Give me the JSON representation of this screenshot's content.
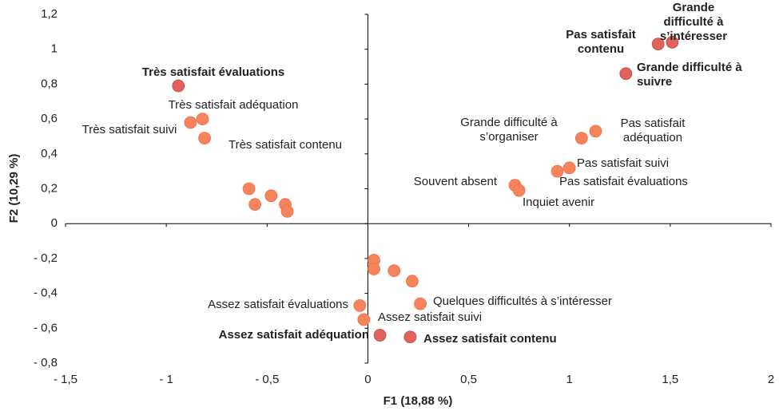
{
  "chart_data": {
    "type": "scatter",
    "x_label": "F1 (18,88 %)",
    "y_label": "F2 (10,29 %)",
    "xlim": [
      -1.5,
      2
    ],
    "ylim": [
      -0.8,
      1.2
    ],
    "xticks": [
      {
        "value": -1.5,
        "label": "- 1,5"
      },
      {
        "value": -1,
        "label": "- 1"
      },
      {
        "value": -0.5,
        "label": "- 0,5"
      },
      0,
      {
        "value": 0.5,
        "label": "0,5"
      },
      1,
      {
        "value": 1.5,
        "label": "1,5"
      },
      2
    ],
    "yticks": [
      {
        "value": -0.8,
        "label": "- 0,8"
      },
      {
        "value": -0.6,
        "label": "- 0,6"
      },
      {
        "value": -0.4,
        "label": "- 0,4"
      },
      {
        "value": -0.2,
        "label": "- 0,2"
      },
      0,
      {
        "value": 0.2,
        "label": "0,2"
      },
      {
        "value": 0.4,
        "label": "0,4"
      },
      {
        "value": 0.6,
        "label": "0,6"
      },
      {
        "value": 0.8,
        "label": "0,8"
      },
      1,
      {
        "value": 1.2,
        "label": "1,2"
      }
    ],
    "color": "#f5845c",
    "emphasis_color": "#e0625c",
    "x": [
      -0.94,
      -0.82,
      -0.88,
      -0.81,
      -0.59,
      -0.56,
      -0.48,
      -0.41,
      -0.4,
      0.03,
      0.03,
      0.13,
      0.22,
      -0.04,
      -0.02,
      0.06,
      0.21,
      0.26,
      0.73,
      0.75,
      0.94,
      1.0,
      1.06,
      1.13,
      1.28,
      1.44,
      1.51
    ],
    "values": [
      0.79,
      0.6,
      0.58,
      0.49,
      0.2,
      0.11,
      0.16,
      0.11,
      0.07,
      -0.21,
      -0.26,
      -0.27,
      -0.33,
      -0.47,
      -0.55,
      -0.64,
      -0.65,
      -0.46,
      0.22,
      0.19,
      0.3,
      0.32,
      0.49,
      0.53,
      0.86,
      1.03,
      1.04
    ],
    "labels": [
      "Très satisfait évaluations",
      "Très satisfait adéquation",
      "Très satisfait suivi",
      "Très satisfait contenu",
      null,
      null,
      null,
      null,
      null,
      null,
      null,
      null,
      null,
      "Assez satisfait évaluations",
      "Assez satisfait suivi",
      "Assez satisfait adéquation",
      "Assez satisfait contenu",
      "Quelques difficultés à s’intéresser",
      "Souvent absent",
      "Inquiet avenir",
      "Pas satisfait évaluations",
      "Pas satisfait suivi",
      "Grande difficulté à\ns’organiser",
      "Pas satisfait\nadéquation",
      "Grande difficulté à\nsuivre",
      "Pas satisfait\ncontenu",
      "Grande difficulté à\ns’intéresser"
    ],
    "emphasized": [
      true,
      false,
      false,
      false,
      false,
      false,
      false,
      false,
      false,
      false,
      false,
      false,
      false,
      false,
      false,
      true,
      true,
      false,
      false,
      false,
      false,
      false,
      false,
      false,
      true,
      true,
      true
    ]
  }
}
